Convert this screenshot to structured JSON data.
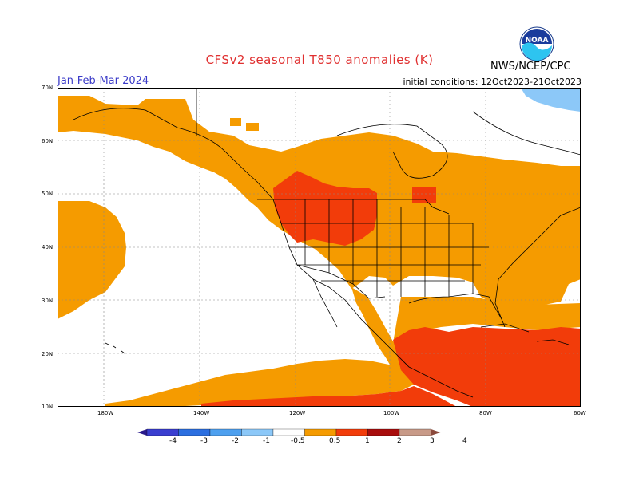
{
  "header": {
    "title": "CFSv2 seasonal T850 anomalies (K)",
    "season": "Jan-Feb-Mar 2024",
    "initial_conditions": "initial conditions: 12Oct2023-21Oct2023",
    "agency": "NWS/NCEP/CPC",
    "logo_text": "NOAA"
  },
  "axes": {
    "lat_labels": [
      "70N",
      "60N",
      "50N",
      "40N",
      "30N",
      "20N",
      "10N"
    ],
    "lon_labels": [
      "180W",
      "140W",
      "120W",
      "100W",
      "80W",
      "60W"
    ]
  },
  "colorbar": {
    "labels": [
      "-4",
      "-3",
      "-2",
      "-1",
      "-0.5",
      "0.5",
      "1",
      "2",
      "3",
      "4"
    ],
    "colors": [
      "#2a1a8c",
      "#3a3ed0",
      "#2c6fe0",
      "#4ea0ef",
      "#8cc8f8",
      "#ffffff",
      "#f59b00",
      "#f23c0a",
      "#a80c0c",
      "#c89a88",
      "#8a4a3c"
    ]
  },
  "map_legend": {
    "shaded": [
      "0.5 to 1 K (orange)",
      "1 to 2 K (red-orange)",
      "-1 to -0.5 K (light blue)"
    ]
  }
}
